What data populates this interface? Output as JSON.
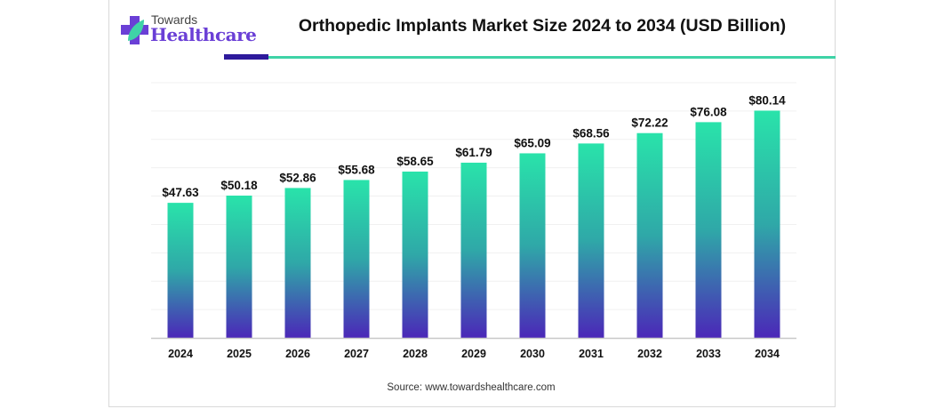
{
  "brand": {
    "line1": "Towards",
    "line2": "Healthcare",
    "icon": "plus-leaf-logo-icon",
    "colors": {
      "purple": "#6a3fd6",
      "teal": "#3fd3a7",
      "dark": "#2e1a9c"
    }
  },
  "source": "Source: www.towardshealthcare.com",
  "chart_data": {
    "type": "bar",
    "title": "Orthopedic Implants Market Size 2024 to 2034 (USD Billion)",
    "xlabel": "",
    "ylabel": "",
    "categories": [
      "2024",
      "2025",
      "2026",
      "2027",
      "2028",
      "2029",
      "2030",
      "2031",
      "2032",
      "2033",
      "2034"
    ],
    "values": [
      47.63,
      50.18,
      52.86,
      55.68,
      58.65,
      61.79,
      65.09,
      68.56,
      72.22,
      76.08,
      80.14
    ],
    "data_labels": [
      "$47.63",
      "$50.18",
      "$52.86",
      "$55.68",
      "$58.65",
      "$61.79",
      "$65.09",
      "$68.56",
      "$72.22",
      "$76.08",
      "$80.14"
    ],
    "ylim": [
      0,
      90
    ],
    "ytick_step": 10,
    "grid": true,
    "y_axis_labels_visible": false,
    "legend": "none",
    "bar_gradient": {
      "top": "#29e3aa",
      "bottom": "#4b27b8"
    }
  }
}
